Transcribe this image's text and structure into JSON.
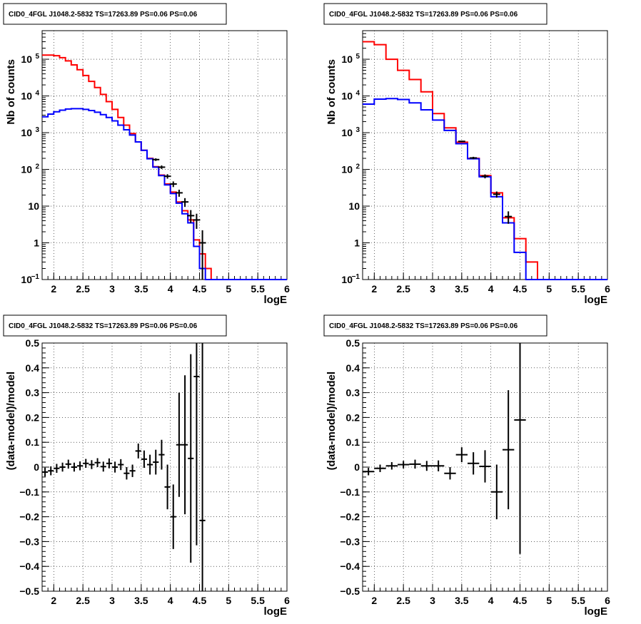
{
  "chart_data": [
    {
      "type": "histogram-log",
      "title": "CID0_4FGL J1048.2-5832 TS=17263.89 PS=0.06 PS=0.06",
      "xlabel": "logE",
      "ylabel": "Nb of counts",
      "xlim": [
        1.8,
        6.0
      ],
      "ylim": [
        0.1,
        600000
      ],
      "log_y": true,
      "grid": true,
      "x_ticks": [
        {
          "v": 2,
          "label": "2"
        },
        {
          "v": 2.5,
          "label": "2.5"
        },
        {
          "v": 3,
          "label": "3"
        },
        {
          "v": 3.5,
          "label": "3.5"
        },
        {
          "v": 4,
          "label": "4"
        },
        {
          "v": 4.5,
          "label": "4.5"
        },
        {
          "v": 5,
          "label": "5"
        },
        {
          "v": 5.5,
          "label": "5.5"
        },
        {
          "v": 6,
          "label": "6"
        }
      ],
      "y_ticks": [
        {
          "v": 0.1,
          "label": "10",
          "sup": "−1"
        },
        {
          "v": 1,
          "label": "1",
          "sup": ""
        },
        {
          "v": 10,
          "label": "10",
          "sup": ""
        },
        {
          "v": 100,
          "label": "10",
          "sup": "2"
        },
        {
          "v": 1000,
          "label": "10",
          "sup": "3"
        },
        {
          "v": 10000,
          "label": "10",
          "sup": "4"
        },
        {
          "v": 100000,
          "label": "10",
          "sup": "5"
        }
      ],
      "bin_edges": [
        1.8,
        1.9,
        2.0,
        2.1,
        2.2,
        2.3,
        2.4,
        2.5,
        2.6,
        2.7,
        2.8,
        2.9,
        3.0,
        3.1,
        3.2,
        3.3,
        3.4,
        3.5,
        3.6,
        3.7,
        3.8,
        3.9,
        4.0,
        4.1,
        4.2,
        4.3,
        4.4,
        4.5,
        4.6,
        4.7,
        4.8,
        4.9,
        5.0,
        5.1,
        5.2,
        5.3,
        5.4,
        5.5,
        5.6,
        5.7,
        5.8,
        5.9,
        6.0
      ],
      "series": [
        {
          "color": "#ff0000",
          "values": [
            130000,
            130000,
            125000,
            110000,
            90000,
            70000,
            52000,
            36000,
            25000,
            17000,
            11000,
            7000,
            4300,
            2600,
            1600,
            950,
            560,
            330,
            200,
            118,
            70,
            40,
            24,
            13,
            7.5,
            4.2,
            1.2,
            0.5,
            0.2,
            0.1,
            0.1,
            0.1,
            0.1,
            0.1,
            0.1,
            0.1,
            0.1,
            0.1,
            0.1,
            0.1,
            0.1,
            0.1
          ]
        },
        {
          "color": "#0000ff",
          "values": [
            2700,
            3200,
            3700,
            4100,
            4400,
            4500,
            4500,
            4300,
            4000,
            3600,
            3100,
            2600,
            2100,
            1600,
            1200,
            860,
            560,
            330,
            195,
            115,
            68,
            38,
            22,
            12,
            6.2,
            3.5,
            0.8,
            0.2,
            0.1,
            0.1,
            0.1,
            0.1,
            0.1,
            0.1,
            0.1,
            0.1,
            0.1,
            0.1,
            0.1,
            0.1,
            0.1,
            0.1
          ]
        }
      ],
      "data_points": [
        {
          "x": 3.75,
          "y": 185,
          "lo": 170,
          "hi": 200
        },
        {
          "x": 3.85,
          "y": 115,
          "lo": 103,
          "hi": 128
        },
        {
          "x": 3.95,
          "y": 65,
          "lo": 56,
          "hi": 74
        },
        {
          "x": 4.05,
          "y": 40,
          "lo": 33,
          "hi": 47
        },
        {
          "x": 4.15,
          "y": 23,
          "lo": 18,
          "hi": 28
        },
        {
          "x": 4.25,
          "y": 13,
          "lo": 9.5,
          "hi": 16.5
        },
        {
          "x": 4.35,
          "y": 5.5,
          "lo": 3.5,
          "hi": 7.8
        },
        {
          "x": 4.45,
          "y": 4.2,
          "lo": 2.4,
          "hi": 6.2
        },
        {
          "x": 4.55,
          "y": 1.0,
          "lo": 0.1,
          "hi": 2.2
        }
      ]
    },
    {
      "type": "histogram-log",
      "title": "CID0_4FGL J1048.2-5832 TS=17263.89 PS=0.06 PS=0.06",
      "xlabel": "logE",
      "ylabel": "Nb of counts",
      "xlim": [
        1.8,
        6.0
      ],
      "ylim": [
        0.1,
        600000
      ],
      "log_y": true,
      "grid": true,
      "x_ticks": [
        {
          "v": 2,
          "label": "2"
        },
        {
          "v": 2.5,
          "label": "2.5"
        },
        {
          "v": 3,
          "label": "3"
        },
        {
          "v": 3.5,
          "label": "3.5"
        },
        {
          "v": 4,
          "label": "4"
        },
        {
          "v": 4.5,
          "label": "4.5"
        },
        {
          "v": 5,
          "label": "5"
        },
        {
          "v": 5.5,
          "label": "5.5"
        },
        {
          "v": 6,
          "label": "6"
        }
      ],
      "y_ticks": [
        {
          "v": 0.1,
          "label": "10",
          "sup": "−1"
        },
        {
          "v": 1,
          "label": "1",
          "sup": ""
        },
        {
          "v": 10,
          "label": "10",
          "sup": ""
        },
        {
          "v": 100,
          "label": "10",
          "sup": "2"
        },
        {
          "v": 1000,
          "label": "10",
          "sup": "3"
        },
        {
          "v": 10000,
          "label": "10",
          "sup": "4"
        },
        {
          "v": 100000,
          "label": "10",
          "sup": "5"
        }
      ],
      "bin_edges": [
        1.8,
        2.0,
        2.2,
        2.4,
        2.6,
        2.8,
        3.0,
        3.2,
        3.4,
        3.6,
        3.8,
        4.0,
        4.2,
        4.4,
        4.6,
        4.8,
        5.0,
        5.2,
        5.4,
        5.6,
        5.8,
        6.0
      ],
      "series": [
        {
          "color": "#ff0000",
          "values": [
            300000,
            250000,
            100000,
            50000,
            28000,
            13000,
            3300,
            1350,
            550,
            200,
            68,
            23,
            4.8,
            1.3,
            0.3,
            0.1,
            0.1,
            0.1,
            0.1,
            0.1,
            0.1
          ]
        },
        {
          "color": "#0000ff",
          "values": [
            6000,
            8200,
            8500,
            8000,
            6500,
            4200,
            2200,
            1150,
            500,
            195,
            63,
            18,
            3.5,
            0.55,
            0.1,
            0.1,
            0.1,
            0.1,
            0.1,
            0.1,
            0.1
          ]
        }
      ],
      "data_points": [
        {
          "x": 3.5,
          "y": 580,
          "lo": 555,
          "hi": 605
        },
        {
          "x": 3.7,
          "y": 205,
          "lo": 190,
          "hi": 220
        },
        {
          "x": 3.9,
          "y": 65,
          "lo": 57,
          "hi": 73
        },
        {
          "x": 4.1,
          "y": 21,
          "lo": 17,
          "hi": 25
        },
        {
          "x": 4.3,
          "y": 5.2,
          "lo": 3.3,
          "hi": 7.2
        }
      ]
    },
    {
      "type": "scatter-errorbar",
      "title": "CID0_4FGL J1048.2-5832 TS=17263.89 PS=0.06 PS=0.06",
      "xlabel": "logE",
      "ylabel": "(data-model)/model",
      "xlim": [
        1.8,
        6.0
      ],
      "ylim": [
        -0.5,
        0.5
      ],
      "log_y": false,
      "grid": true,
      "x_ticks": [
        {
          "v": 2,
          "label": "2"
        },
        {
          "v": 2.5,
          "label": "2.5"
        },
        {
          "v": 3,
          "label": "3"
        },
        {
          "v": 3.5,
          "label": "3.5"
        },
        {
          "v": 4,
          "label": "4"
        },
        {
          "v": 4.5,
          "label": "4.5"
        },
        {
          "v": 5,
          "label": "5"
        },
        {
          "v": 5.5,
          "label": "5.5"
        },
        {
          "v": 6,
          "label": "6"
        }
      ],
      "y_ticks": [
        {
          "v": -0.5,
          "label": "−0.5"
        },
        {
          "v": -0.4,
          "label": "−0.4"
        },
        {
          "v": -0.3,
          "label": "−0.3"
        },
        {
          "v": -0.2,
          "label": "−0.2"
        },
        {
          "v": -0.1,
          "label": "−0.1"
        },
        {
          "v": 0,
          "label": "0"
        },
        {
          "v": 0.1,
          "label": "0.1"
        },
        {
          "v": 0.2,
          "label": "0.2"
        },
        {
          "v": 0.3,
          "label": "0.3"
        },
        {
          "v": 0.4,
          "label": "0.4"
        },
        {
          "v": 0.5,
          "label": "0.5"
        }
      ],
      "points": [
        {
          "x": 1.85,
          "y": -0.02,
          "err": 0.018,
          "xerr": 0.05
        },
        {
          "x": 1.95,
          "y": -0.015,
          "err": 0.018,
          "xerr": 0.05
        },
        {
          "x": 2.05,
          "y": -0.005,
          "err": 0.018,
          "xerr": 0.05
        },
        {
          "x": 2.15,
          "y": 0.0,
          "err": 0.018,
          "xerr": 0.05
        },
        {
          "x": 2.25,
          "y": 0.012,
          "err": 0.018,
          "xerr": 0.05
        },
        {
          "x": 2.35,
          "y": 0.0,
          "err": 0.018,
          "xerr": 0.05
        },
        {
          "x": 2.45,
          "y": 0.005,
          "err": 0.018,
          "xerr": 0.05
        },
        {
          "x": 2.55,
          "y": 0.015,
          "err": 0.018,
          "xerr": 0.05
        },
        {
          "x": 2.65,
          "y": 0.01,
          "err": 0.018,
          "xerr": 0.05
        },
        {
          "x": 2.75,
          "y": 0.018,
          "err": 0.018,
          "xerr": 0.05
        },
        {
          "x": 2.85,
          "y": 0.002,
          "err": 0.02,
          "xerr": 0.05
        },
        {
          "x": 2.95,
          "y": 0.015,
          "err": 0.02,
          "xerr": 0.05
        },
        {
          "x": 3.05,
          "y": 0.0,
          "err": 0.022,
          "xerr": 0.05
        },
        {
          "x": 3.15,
          "y": 0.01,
          "err": 0.022,
          "xerr": 0.05
        },
        {
          "x": 3.25,
          "y": -0.025,
          "err": 0.025,
          "xerr": 0.05
        },
        {
          "x": 3.35,
          "y": -0.015,
          "err": 0.025,
          "xerr": 0.05
        },
        {
          "x": 3.45,
          "y": 0.065,
          "err": 0.03,
          "xerr": 0.05
        },
        {
          "x": 3.55,
          "y": 0.032,
          "err": 0.035,
          "xerr": 0.05
        },
        {
          "x": 3.65,
          "y": 0.01,
          "err": 0.04,
          "xerr": 0.05
        },
        {
          "x": 3.75,
          "y": 0.02,
          "err": 0.05,
          "xerr": 0.05
        },
        {
          "x": 3.85,
          "y": 0.05,
          "err": 0.06,
          "xerr": 0.05
        },
        {
          "x": 3.95,
          "y": -0.08,
          "err": 0.09,
          "xerr": 0.05
        },
        {
          "x": 4.05,
          "y": -0.2,
          "err": 0.13,
          "xerr": 0.05
        },
        {
          "x": 4.15,
          "y": 0.09,
          "err": 0.21,
          "xerr": 0.05
        },
        {
          "x": 4.25,
          "y": 0.09,
          "err": 0.28,
          "xerr": 0.05
        },
        {
          "x": 4.35,
          "y": 0.035,
          "err": 0.42,
          "xerr": 0.05
        },
        {
          "x": 4.45,
          "y": 0.365,
          "err": 0.68,
          "xerr": 0.05
        },
        {
          "x": 4.55,
          "y": -0.215,
          "err": 0.9,
          "xerr": 0.05
        }
      ]
    },
    {
      "type": "scatter-errorbar",
      "title": "CID0_4FGL J1048.2-5832 TS=17263.89 PS=0.06 PS=0.06",
      "xlabel": "logE",
      "ylabel": "(data-model)/model",
      "xlim": [
        1.8,
        6.0
      ],
      "ylim": [
        -0.5,
        0.5
      ],
      "log_y": false,
      "grid": true,
      "x_ticks": [
        {
          "v": 2,
          "label": "2"
        },
        {
          "v": 2.5,
          "label": "2.5"
        },
        {
          "v": 3,
          "label": "3"
        },
        {
          "v": 3.5,
          "label": "3.5"
        },
        {
          "v": 4,
          "label": "4"
        },
        {
          "v": 4.5,
          "label": "4.5"
        },
        {
          "v": 5,
          "label": "5"
        },
        {
          "v": 5.5,
          "label": "5.5"
        },
        {
          "v": 6,
          "label": "6"
        }
      ],
      "y_ticks": [
        {
          "v": -0.5,
          "label": "−0.5"
        },
        {
          "v": -0.4,
          "label": "−0.4"
        },
        {
          "v": -0.3,
          "label": "−0.3"
        },
        {
          "v": -0.2,
          "label": "−0.2"
        },
        {
          "v": -0.1,
          "label": "−0.1"
        },
        {
          "v": 0,
          "label": "0"
        },
        {
          "v": 0.1,
          "label": "0.1"
        },
        {
          "v": 0.2,
          "label": "0.2"
        },
        {
          "v": 0.3,
          "label": "0.3"
        },
        {
          "v": 0.4,
          "label": "0.4"
        },
        {
          "v": 0.5,
          "label": "0.5"
        }
      ],
      "points": [
        {
          "x": 1.9,
          "y": -0.018,
          "err": 0.015,
          "xerr": 0.1
        },
        {
          "x": 2.1,
          "y": -0.005,
          "err": 0.015,
          "xerr": 0.1
        },
        {
          "x": 2.3,
          "y": 0.005,
          "err": 0.015,
          "xerr": 0.1
        },
        {
          "x": 2.5,
          "y": 0.01,
          "err": 0.015,
          "xerr": 0.1
        },
        {
          "x": 2.7,
          "y": 0.012,
          "err": 0.018,
          "xerr": 0.1
        },
        {
          "x": 2.9,
          "y": 0.005,
          "err": 0.02,
          "xerr": 0.1
        },
        {
          "x": 3.1,
          "y": 0.005,
          "err": 0.022,
          "xerr": 0.1
        },
        {
          "x": 3.3,
          "y": -0.025,
          "err": 0.025,
          "xerr": 0.1
        },
        {
          "x": 3.5,
          "y": 0.05,
          "err": 0.03,
          "xerr": 0.1
        },
        {
          "x": 3.7,
          "y": 0.015,
          "err": 0.045,
          "xerr": 0.1
        },
        {
          "x": 3.9,
          "y": 0.003,
          "err": 0.065,
          "xerr": 0.1
        },
        {
          "x": 4.1,
          "y": -0.1,
          "err": 0.11,
          "xerr": 0.1
        },
        {
          "x": 4.3,
          "y": 0.07,
          "err": 0.24,
          "xerr": 0.1
        },
        {
          "x": 4.5,
          "y": 0.19,
          "err": 0.54,
          "xerr": 0.1
        }
      ]
    }
  ]
}
